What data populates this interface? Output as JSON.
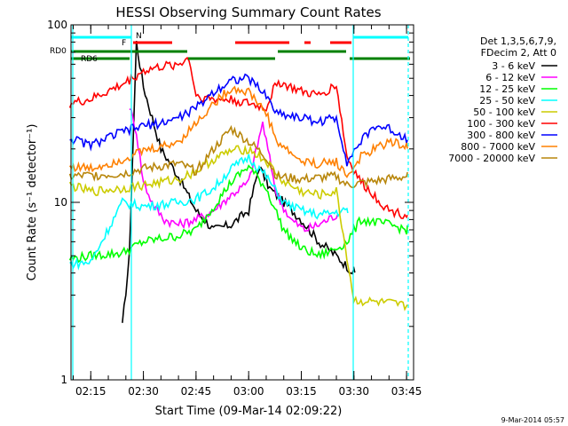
{
  "chart_data": {
    "type": "line",
    "title": "HESSI Observing Summary Count Rates",
    "xlabel": "Start Time (09-Mar-14 02:09:22)",
    "ylabel": "Count Rate (s⁻¹ detector⁻¹)",
    "y_scale": "log",
    "ylim": [
      1,
      100
    ],
    "xlim": [
      "02:09:22",
      "03:47:00"
    ],
    "x_ticks": [
      "02:15",
      "02:30",
      "02:45",
      "03:00",
      "03:15",
      "03:30",
      "03:45"
    ],
    "y_ticks": [
      "1",
      "10",
      "100"
    ],
    "footer_date": "9-Mar-2014 05:57",
    "legend": {
      "header": [
        "Det 1,3,5,6,7,9,",
        "FDecim 2, Att 0"
      ],
      "placement": "right"
    },
    "flags": [
      {
        "label": "RD0",
        "color": "#008000"
      },
      {
        "label": "RD6",
        "color": "#008000"
      },
      {
        "label": "F",
        "color": "#ff0000"
      },
      {
        "label": "N",
        "color": "#00ffff"
      }
    ],
    "series": [
      {
        "name": "3 - 6 keV",
        "color": "#000000",
        "x": [
          "02:24",
          "02:26",
          "02:28",
          "02:30",
          "02:35",
          "02:40",
          "02:45",
          "02:50",
          "02:55",
          "03:00",
          "03:03",
          "03:06",
          "03:10",
          "03:15",
          "03:20",
          "03:25",
          "03:30"
        ],
        "y": [
          2.0,
          5.0,
          80.0,
          45.0,
          20.0,
          14.0,
          9.0,
          7.0,
          7.5,
          9.0,
          16.0,
          12.0,
          10.0,
          8.0,
          6.0,
          5.0,
          4.0
        ]
      },
      {
        "name": "6 - 12 keV",
        "color": "#ff00ff",
        "x": [
          "02:26",
          "02:28",
          "02:30",
          "02:33",
          "02:36",
          "02:40",
          "02:45",
          "02:50",
          "02:55",
          "03:00",
          "03:04",
          "03:08",
          "03:12",
          "03:16",
          "03:20",
          "03:25"
        ],
        "y": [
          35.0,
          25.0,
          13.0,
          9.5,
          8.0,
          7.5,
          8.0,
          9.0,
          11.0,
          13.0,
          28.0,
          11.0,
          8.0,
          7.0,
          7.5,
          8.5
        ]
      },
      {
        "name": "12 - 25 keV",
        "color": "#00ff00",
        "x": [
          "02:09",
          "02:15",
          "02:24",
          "02:30",
          "02:40",
          "02:45",
          "02:50",
          "02:55",
          "03:00",
          "03:05",
          "03:10",
          "03:15",
          "03:20",
          "03:25",
          "03:28",
          "03:32",
          "03:40",
          "03:45"
        ],
        "y": [
          4.8,
          5.0,
          5.2,
          6.0,
          6.5,
          7.0,
          9.5,
          13.0,
          16.0,
          12.0,
          7.0,
          5.5,
          5.0,
          5.5,
          6.0,
          8.0,
          7.5,
          7.0
        ]
      },
      {
        "name": "25 - 50 keV",
        "color": "#00ffff",
        "x": [
          "02:09",
          "02:15",
          "02:24",
          "02:30",
          "02:40",
          "02:45",
          "02:50",
          "02:55",
          "03:00",
          "03:05",
          "03:10",
          "03:15",
          "03:20",
          "03:25",
          "03:28"
        ],
        "y": [
          4.5,
          4.6,
          10.0,
          9.5,
          10.0,
          10.5,
          12.0,
          15.5,
          18.0,
          14.0,
          10.0,
          9.0,
          8.5,
          8.8,
          9.0
        ]
      },
      {
        "name": "50 - 100 keV",
        "color": "#cccc00",
        "x": [
          "02:09",
          "02:15",
          "02:24",
          "02:30",
          "02:40",
          "02:45",
          "02:50",
          "02:55",
          "03:00",
          "03:05",
          "03:10",
          "03:15",
          "03:20",
          "03:25",
          "03:30",
          "03:40",
          "03:45"
        ],
        "y": [
          12.5,
          11.5,
          12.0,
          12.5,
          13.5,
          15.0,
          17.5,
          19.5,
          20.0,
          17.0,
          13.0,
          11.5,
          11.0,
          11.5,
          2.8,
          2.7,
          2.6
        ]
      },
      {
        "name": "100 - 300 keV",
        "color": "#ff0000",
        "x": [
          "02:09",
          "02:15",
          "02:24",
          "02:30",
          "02:35",
          "02:40",
          "02:43",
          "02:45",
          "02:50",
          "02:55",
          "03:00",
          "03:05",
          "03:08",
          "03:15",
          "03:20",
          "03:25",
          "03:28",
          "03:32",
          "03:40",
          "03:45"
        ],
        "y": [
          36.0,
          38.0,
          46.0,
          55.0,
          58.0,
          60.0,
          65.0,
          40.0,
          38.0,
          38.0,
          36.0,
          34.0,
          48.0,
          42.0,
          40.0,
          46.0,
          18.0,
          13.0,
          9.0,
          8.5
        ]
      },
      {
        "name": "300 - 800 keV",
        "color": "#0000ff",
        "x": [
          "02:09",
          "02:15",
          "02:24",
          "02:30",
          "02:35",
          "02:40",
          "02:45",
          "02:50",
          "02:55",
          "03:00",
          "03:05",
          "03:08",
          "03:15",
          "03:20",
          "03:25",
          "03:28",
          "03:32",
          "03:36",
          "03:40",
          "03:45"
        ],
        "y": [
          23.0,
          21.0,
          25.0,
          27.0,
          28.0,
          30.0,
          34.0,
          42.0,
          49.0,
          50.0,
          40.0,
          32.0,
          30.0,
          28.5,
          30.0,
          17.0,
          22.0,
          27.0,
          26.0,
          23.0
        ]
      },
      {
        "name": "800 - 7000 keV",
        "color": "#ff8000",
        "x": [
          "02:09",
          "02:15",
          "02:24",
          "02:30",
          "02:35",
          "02:40",
          "02:45",
          "02:50",
          "02:55",
          "03:00",
          "03:05",
          "03:08",
          "03:15",
          "03:20",
          "03:25",
          "03:28",
          "03:32",
          "03:36",
          "03:40",
          "03:45"
        ],
        "y": [
          16.0,
          15.5,
          17.5,
          19.5,
          20.5,
          22.0,
          28.0,
          36.0,
          44.0,
          42.0,
          32.0,
          22.0,
          17.0,
          16.5,
          17.0,
          14.0,
          18.0,
          20.0,
          22.0,
          21.0
        ]
      },
      {
        "name": "7000 - 20000 keV",
        "color": "#b8860b",
        "x": [
          "02:09",
          "02:24",
          "02:30",
          "02:40",
          "02:45",
          "02:50",
          "02:55",
          "03:00",
          "03:05",
          "03:08",
          "03:15",
          "03:25",
          "03:28",
          "03:45"
        ],
        "y": [
          14.0,
          14.5,
          15.5,
          16.5,
          15.0,
          20.0,
          26.0,
          22.0,
          18.0,
          14.0,
          13.5,
          14.0,
          12.5,
          14.0
        ]
      }
    ],
    "grid": false
  }
}
